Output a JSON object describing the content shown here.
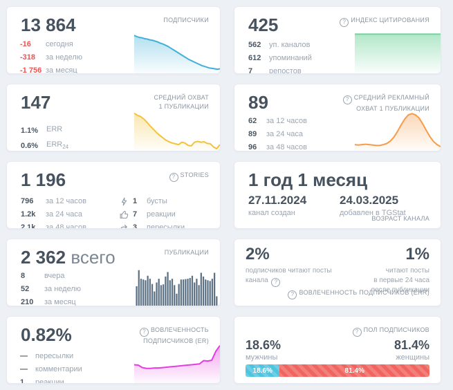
{
  "icons": {
    "info": "?"
  },
  "colors": {
    "subscribers_line": "#3fb0d8",
    "citation_line": "#72d49c",
    "reach_line": "#f3c23c",
    "ad_reach_line": "#f59b4a",
    "publications_bar": "#5d7185",
    "er_line": "#e53ce0",
    "male": "#4fc4de",
    "female": "#f0655f",
    "negative": "#ed5450"
  },
  "cards": {
    "subscribers": {
      "value": "13 864",
      "label": "ПОДПИСЧИКИ",
      "rows": [
        {
          "value": "-16",
          "label": "сегодня"
        },
        {
          "value": "-318",
          "label": "за неделю"
        },
        {
          "value": "-1 756",
          "label": "за месяц"
        }
      ],
      "spark": [
        93,
        90,
        88,
        87,
        85,
        84,
        82,
        81,
        79,
        77,
        74,
        72,
        69,
        66,
        62,
        58,
        54,
        50,
        46,
        42,
        38,
        34,
        31,
        28,
        25,
        22,
        19,
        17,
        15,
        13,
        12,
        11,
        10,
        11
      ]
    },
    "citation": {
      "value": "425",
      "label": "ИНДЕКС ЦИТИРОВАНИЯ",
      "rows": [
        {
          "value": "562",
          "label": "уп. каналов"
        },
        {
          "value": "612",
          "label": "упоминаний"
        },
        {
          "value": "7",
          "label": "репостов"
        }
      ],
      "spark": [
        96,
        96,
        96,
        96,
        96,
        96,
        96,
        96,
        96,
        96
      ]
    },
    "reach": {
      "value": "147",
      "label": "СРЕДНИЙ ОХВАТ\n1 ПУБЛИКАЦИИ",
      "rows": [
        {
          "value": "1.1%",
          "label": "ERR",
          "sub": ""
        },
        {
          "value": "0.6%",
          "label": "ERR",
          "sub": "24"
        }
      ],
      "spark": [
        92,
        87,
        84,
        78,
        70,
        61,
        53,
        45,
        38,
        32,
        26,
        22,
        19,
        17,
        15,
        21,
        19,
        13,
        12,
        21,
        23,
        21,
        22,
        18,
        17,
        9,
        5,
        15
      ]
    },
    "ad_reach": {
      "value": "89",
      "label": "СРЕДНИЙ РЕКЛАМНЫЙ\nОХВАТ 1 ПУБЛИКАЦИИ",
      "rows": [
        {
          "value": "62",
          "label": "за 12 часов"
        },
        {
          "value": "89",
          "label": "за 24 часа"
        },
        {
          "value": "96",
          "label": "за 48 часов"
        }
      ],
      "spark": [
        15,
        14,
        15,
        16,
        15,
        14,
        13,
        13,
        15,
        18,
        24,
        34,
        48,
        64,
        78,
        88,
        91,
        88,
        80,
        66,
        50,
        35,
        23,
        15,
        10
      ]
    },
    "stories": {
      "value": "1 196",
      "label": "STORIES",
      "rows": [
        {
          "value": "796",
          "label": "за 12 часов"
        },
        {
          "value": "1.2k",
          "label": "за 24 часа"
        },
        {
          "value": "2.1k",
          "label": "за 48 часов"
        }
      ],
      "engagement": [
        {
          "icon": "boost-icon",
          "value": "1",
          "label": "бусты"
        },
        {
          "icon": "thumb-up-icon",
          "value": "7",
          "label": "реакции"
        },
        {
          "icon": "forward-icon",
          "value": "3",
          "label": "пересылки"
        }
      ]
    },
    "age": {
      "value": "1 год 1 месяц",
      "created_date": "27.11.2024",
      "created_label": "канал создан",
      "added_date": "24.03.2025",
      "added_label": "добавлен в TGStat",
      "footer": "ВОЗРАСТ КАНАЛА"
    },
    "publications": {
      "value": "2 362",
      "suffix": "всего",
      "label": "ПУБЛИКАЦИИ",
      "rows": [
        {
          "value": "8",
          "label": "вчера"
        },
        {
          "value": "52",
          "label": "за неделю"
        },
        {
          "value": "210",
          "label": "за месяц"
        }
      ],
      "bars": [
        52,
        95,
        72,
        70,
        68,
        80,
        72,
        58,
        38,
        62,
        72,
        55,
        57,
        78,
        90,
        68,
        72,
        55,
        32,
        58,
        70,
        70,
        71,
        72,
        74,
        80,
        62,
        72,
        55,
        88,
        78,
        70,
        68,
        66,
        72,
        88,
        25
      ]
    },
    "err": {
      "left_value": "2%",
      "left_label": "подписчиков читают посты\nканала",
      "right_value": "1%",
      "right_label": "читают посты\nв первые 24 часа\nпосле публикации",
      "footer": "ВОВЛЕЧЕННОСТЬ ПОДПИСЧИКОВ (ERR)"
    },
    "er": {
      "value": "0.82%",
      "label": "ВОВЛЕЧЕННОСТЬ\nПОДПИСЧИКОВ (ER)",
      "rows": [
        {
          "value": "—",
          "label": "пересылки"
        },
        {
          "value": "—",
          "label": "комментарии"
        },
        {
          "value": "1",
          "label": "реакции"
        }
      ],
      "spark": [
        45,
        44,
        38,
        36,
        36,
        37,
        37,
        38,
        39,
        40,
        41,
        42,
        43,
        44,
        45,
        46,
        47,
        55,
        54,
        56,
        78,
        92
      ]
    },
    "gender": {
      "label": "ПОЛ ПОДПИСЧИКОВ",
      "male_value": "18.6%",
      "male_label": "мужчины",
      "male_percent": 18.6,
      "female_value": "81.4%",
      "female_label": "женщины",
      "female_percent": 81.4
    }
  }
}
